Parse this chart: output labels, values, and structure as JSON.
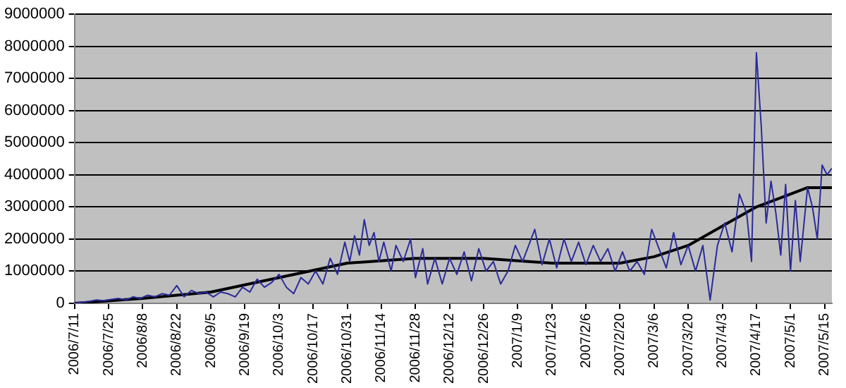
{
  "chart_data": {
    "type": "line",
    "xlim": [
      "2006-07-11",
      "2007-05-18"
    ],
    "xticks": [
      {
        "value": "2006-07-11",
        "label": "2006/7/11"
      },
      {
        "value": "2006-07-25",
        "label": "2006/7/25"
      },
      {
        "value": "2006-08-08",
        "label": "2006/8/8"
      },
      {
        "value": "2006-08-22",
        "label": "2006/8/22"
      },
      {
        "value": "2006-09-05",
        "label": "2006/9/5"
      },
      {
        "value": "2006-09-19",
        "label": "2006/9/19"
      },
      {
        "value": "2006-10-03",
        "label": "2006/10/3"
      },
      {
        "value": "2006-10-17",
        "label": "2006/10/17"
      },
      {
        "value": "2006-10-31",
        "label": "2006/10/31"
      },
      {
        "value": "2006-11-14",
        "label": "2006/11/14"
      },
      {
        "value": "2006-11-28",
        "label": "2006/11/28"
      },
      {
        "value": "2006-12-12",
        "label": "2006/12/12"
      },
      {
        "value": "2006-12-26",
        "label": "2006/12/26"
      },
      {
        "value": "2007-01-09",
        "label": "2007/1/9"
      },
      {
        "value": "2007-01-23",
        "label": "2007/1/23"
      },
      {
        "value": "2007-02-06",
        "label": "2007/2/6"
      },
      {
        "value": "2007-02-20",
        "label": "2007/2/20"
      },
      {
        "value": "2007-03-06",
        "label": "2007/3/6"
      },
      {
        "value": "2007-03-20",
        "label": "2007/3/20"
      },
      {
        "value": "2007-04-03",
        "label": "2007/4/3"
      },
      {
        "value": "2007-04-17",
        "label": "2007/4/17"
      },
      {
        "value": "2007-05-01",
        "label": "2007/5/1"
      },
      {
        "value": "2007-05-15",
        "label": "2007/5/15"
      }
    ],
    "ylim": [
      0,
      9000000
    ],
    "yticks": [
      0,
      1000000,
      2000000,
      3000000,
      4000000,
      5000000,
      6000000,
      7000000,
      8000000,
      9000000
    ],
    "grid": "y",
    "legend": false,
    "marker": "none",
    "line_style": "solid",
    "series": [
      {
        "color": "#2b2b9b",
        "x": [
          "2006-07-11",
          "2006-07-14",
          "2006-07-17",
          "2006-07-20",
          "2006-07-23",
          "2006-07-26",
          "2006-07-29",
          "2006-08-01",
          "2006-08-04",
          "2006-08-07",
          "2006-08-10",
          "2006-08-13",
          "2006-08-16",
          "2006-08-19",
          "2006-08-22",
          "2006-08-25",
          "2006-08-28",
          "2006-08-31",
          "2006-09-03",
          "2006-09-06",
          "2006-09-09",
          "2006-09-12",
          "2006-09-15",
          "2006-09-18",
          "2006-09-21",
          "2006-09-24",
          "2006-09-27",
          "2006-09-30",
          "2006-10-03",
          "2006-10-06",
          "2006-10-09",
          "2006-10-12",
          "2006-10-15",
          "2006-10-18",
          "2006-10-21",
          "2006-10-24",
          "2006-10-27",
          "2006-10-30",
          "2006-11-01",
          "2006-11-03",
          "2006-11-05",
          "2006-11-07",
          "2006-11-09",
          "2006-11-11",
          "2006-11-13",
          "2006-11-15",
          "2006-11-18",
          "2006-11-20",
          "2006-11-23",
          "2006-11-26",
          "2006-11-28",
          "2006-12-01",
          "2006-12-03",
          "2006-12-06",
          "2006-12-09",
          "2006-12-12",
          "2006-12-15",
          "2006-12-18",
          "2006-12-21",
          "2006-12-24",
          "2006-12-27",
          "2006-12-30",
          "2007-01-02",
          "2007-01-05",
          "2007-01-08",
          "2007-01-11",
          "2007-01-14",
          "2007-01-16",
          "2007-01-19",
          "2007-01-22",
          "2007-01-25",
          "2007-01-28",
          "2007-01-31",
          "2007-02-03",
          "2007-02-06",
          "2007-02-09",
          "2007-02-12",
          "2007-02-15",
          "2007-02-18",
          "2007-02-21",
          "2007-02-24",
          "2007-02-27",
          "2007-03-02",
          "2007-03-05",
          "2007-03-08",
          "2007-03-11",
          "2007-03-14",
          "2007-03-17",
          "2007-03-20",
          "2007-03-23",
          "2007-03-26",
          "2007-03-29",
          "2007-04-01",
          "2007-04-04",
          "2007-04-07",
          "2007-04-10",
          "2007-04-13",
          "2007-04-15",
          "2007-04-17",
          "2007-04-19",
          "2007-04-21",
          "2007-04-23",
          "2007-04-25",
          "2007-04-27",
          "2007-04-29",
          "2007-05-01",
          "2007-05-03",
          "2007-05-05",
          "2007-05-08",
          "2007-05-10",
          "2007-05-12",
          "2007-05-14",
          "2007-05-16",
          "2007-05-18"
        ],
        "values": [
          0,
          30000,
          60000,
          100000,
          80000,
          120000,
          150000,
          100000,
          200000,
          150000,
          250000,
          200000,
          300000,
          250000,
          550000,
          200000,
          400000,
          300000,
          350000,
          200000,
          350000,
          300000,
          200000,
          500000,
          350000,
          750000,
          500000,
          650000,
          900000,
          500000,
          300000,
          800000,
          600000,
          1000000,
          600000,
          1400000,
          900000,
          1900000,
          1300000,
          2100000,
          1500000,
          2600000,
          1800000,
          2200000,
          1300000,
          1900000,
          1000000,
          1800000,
          1300000,
          2000000,
          800000,
          1700000,
          600000,
          1400000,
          600000,
          1400000,
          900000,
          1600000,
          700000,
          1700000,
          1000000,
          1300000,
          600000,
          1000000,
          1800000,
          1300000,
          1900000,
          2300000,
          1200000,
          2000000,
          1100000,
          2000000,
          1300000,
          1900000,
          1200000,
          1800000,
          1300000,
          1700000,
          1000000,
          1600000,
          1000000,
          1300000,
          900000,
          2300000,
          1700000,
          1100000,
          2200000,
          1200000,
          1800000,
          1000000,
          1800000,
          100000,
          1800000,
          2500000,
          1600000,
          3400000,
          2800000,
          1300000,
          7800000,
          5500000,
          2500000,
          3800000,
          2800000,
          1500000,
          3700000,
          1000000,
          3200000,
          1300000,
          3600000,
          3000000,
          2000000,
          4300000,
          4000000,
          4200000
        ]
      },
      {
        "color": "#000000",
        "x": [
          "2006-07-11",
          "2006-08-08",
          "2006-09-05",
          "2006-10-03",
          "2006-10-31",
          "2006-11-28",
          "2006-12-26",
          "2007-01-23",
          "2007-02-20",
          "2007-03-06",
          "2007-03-20",
          "2007-04-03",
          "2007-04-17",
          "2007-05-01",
          "2007-05-08",
          "2007-05-18"
        ],
        "values": [
          0,
          150000,
          350000,
          800000,
          1250000,
          1400000,
          1400000,
          1250000,
          1250000,
          1450000,
          1800000,
          2400000,
          3000000,
          3400000,
          3600000,
          3600000
        ]
      }
    ]
  }
}
